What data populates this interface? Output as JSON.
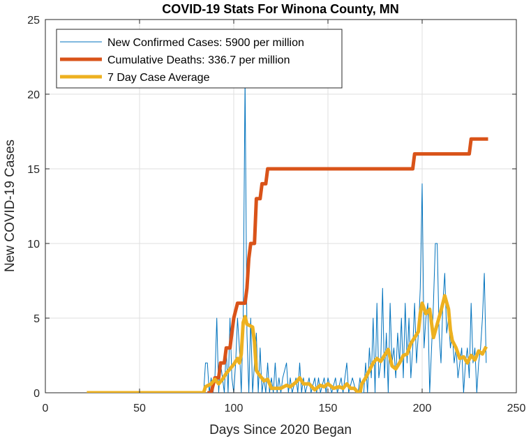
{
  "chart_data": {
    "type": "line",
    "title": "COVID-19 Stats For Winona County, MN",
    "xlabel": "Days Since 2020 Began",
    "ylabel": "New COVID-19 Cases",
    "xlim": [
      0,
      250
    ],
    "ylim": [
      0,
      25
    ],
    "xticks": [
      0,
      50,
      100,
      150,
      200,
      250
    ],
    "yticks": [
      0,
      5,
      10,
      15,
      20,
      25
    ],
    "grid": true,
    "legend_position": "top-left",
    "series": [
      {
        "name": "New Confirmed Cases: 5900 per million",
        "color": "#0072BD",
        "points": [
          [
            22,
            0
          ],
          [
            30,
            0
          ],
          [
            40,
            0
          ],
          [
            50,
            0
          ],
          [
            60,
            0
          ],
          [
            70,
            0
          ],
          [
            80,
            0
          ],
          [
            84,
            0
          ],
          [
            85,
            2
          ],
          [
            86,
            2
          ],
          [
            87,
            0
          ],
          [
            88,
            1
          ],
          [
            89,
            0
          ],
          [
            90,
            1
          ],
          [
            91,
            5
          ],
          [
            92,
            0
          ],
          [
            93,
            2
          ],
          [
            94,
            1
          ],
          [
            95,
            0
          ],
          [
            96,
            3
          ],
          [
            97,
            0
          ],
          [
            98,
            5
          ],
          [
            99,
            1
          ],
          [
            100,
            0
          ],
          [
            101,
            2
          ],
          [
            102,
            5
          ],
          [
            103,
            3
          ],
          [
            104,
            0
          ],
          [
            105,
            5
          ],
          [
            106,
            21
          ],
          [
            107,
            4
          ],
          [
            108,
            0
          ],
          [
            109,
            5
          ],
          [
            110,
            0
          ],
          [
            111,
            2
          ],
          [
            112,
            4
          ],
          [
            113,
            0
          ],
          [
            114,
            3
          ],
          [
            115,
            0
          ],
          [
            116,
            1
          ],
          [
            117,
            0
          ],
          [
            118,
            2
          ],
          [
            119,
            0
          ],
          [
            120,
            1
          ],
          [
            121,
            0
          ],
          [
            122,
            2
          ],
          [
            123,
            0
          ],
          [
            124,
            1
          ],
          [
            125,
            0
          ],
          [
            126,
            1
          ],
          [
            128,
            2
          ],
          [
            129,
            0
          ],
          [
            130,
            1
          ],
          [
            131,
            0
          ],
          [
            133,
            1
          ],
          [
            134,
            0
          ],
          [
            135,
            2
          ],
          [
            136,
            0
          ],
          [
            137,
            1
          ],
          [
            138,
            0
          ],
          [
            140,
            1
          ],
          [
            141,
            0
          ],
          [
            143,
            1
          ],
          [
            144,
            0
          ],
          [
            145,
            1
          ],
          [
            146,
            0
          ],
          [
            148,
            1
          ],
          [
            149,
            0
          ],
          [
            150,
            1
          ],
          [
            152,
            0
          ],
          [
            154,
            1
          ],
          [
            155,
            0
          ],
          [
            157,
            1
          ],
          [
            158,
            0
          ],
          [
            160,
            2
          ],
          [
            161,
            0
          ],
          [
            163,
            1
          ],
          [
            165,
            0
          ],
          [
            166,
            0
          ],
          [
            167,
            1
          ],
          [
            168,
            0
          ],
          [
            169,
            0
          ],
          [
            170,
            2
          ],
          [
            171,
            0
          ],
          [
            172,
            3
          ],
          [
            173,
            1
          ],
          [
            174,
            5
          ],
          [
            175,
            0
          ],
          [
            176,
            6
          ],
          [
            177,
            1
          ],
          [
            178,
            2
          ],
          [
            179,
            7
          ],
          [
            180,
            1
          ],
          [
            181,
            4
          ],
          [
            182,
            0
          ],
          [
            183,
            6
          ],
          [
            184,
            2
          ],
          [
            185,
            3
          ],
          [
            186,
            1
          ],
          [
            187,
            4
          ],
          [
            188,
            2
          ],
          [
            189,
            5
          ],
          [
            190,
            1
          ],
          [
            191,
            6
          ],
          [
            192,
            2
          ],
          [
            193,
            5
          ],
          [
            194,
            1
          ],
          [
            195,
            3
          ],
          [
            196,
            6
          ],
          [
            197,
            2
          ],
          [
            198,
            4
          ],
          [
            199,
            7
          ],
          [
            200,
            14
          ],
          [
            201,
            3
          ],
          [
            202,
            5
          ],
          [
            203,
            6
          ],
          [
            204,
            0
          ],
          [
            205,
            3
          ],
          [
            206,
            6
          ],
          [
            207,
            10
          ],
          [
            208,
            10
          ],
          [
            209,
            4
          ],
          [
            210,
            2
          ],
          [
            211,
            6
          ],
          [
            212,
            8
          ],
          [
            213,
            4
          ],
          [
            214,
            5
          ],
          [
            215,
            3
          ],
          [
            216,
            4
          ],
          [
            217,
            2
          ],
          [
            218,
            3
          ],
          [
            219,
            1
          ],
          [
            220,
            2
          ],
          [
            221,
            3
          ],
          [
            222,
            0
          ],
          [
            223,
            2
          ],
          [
            224,
            3
          ],
          [
            225,
            1
          ],
          [
            226,
            6
          ],
          [
            227,
            2
          ],
          [
            228,
            3
          ],
          [
            229,
            0
          ],
          [
            230,
            2
          ],
          [
            231,
            3
          ],
          [
            232,
            5
          ],
          [
            233,
            8
          ],
          [
            234,
            2
          ]
        ]
      },
      {
        "name": "Cumulative Deaths: 336.7 per million",
        "color": "#D95319",
        "points": [
          [
            86,
            0
          ],
          [
            88,
            0
          ],
          [
            89,
            0.5
          ],
          [
            90,
            1
          ],
          [
            92,
            1
          ],
          [
            93,
            2
          ],
          [
            95,
            2
          ],
          [
            96,
            3
          ],
          [
            98,
            3
          ],
          [
            99,
            4
          ],
          [
            100,
            5
          ],
          [
            102,
            6
          ],
          [
            106,
            6
          ],
          [
            107,
            7
          ],
          [
            108,
            9
          ],
          [
            109,
            10
          ],
          [
            111,
            10
          ],
          [
            112,
            13
          ],
          [
            114,
            13
          ],
          [
            115,
            14
          ],
          [
            117,
            14
          ],
          [
            118,
            15
          ],
          [
            120,
            15
          ],
          [
            150,
            15
          ],
          [
            195,
            15
          ],
          [
            196,
            16
          ],
          [
            225,
            16
          ],
          [
            226,
            17
          ],
          [
            235,
            17
          ]
        ]
      },
      {
        "name": "7 Day Case Average",
        "color": "#EDB120",
        "points": [
          [
            22,
            0
          ],
          [
            40,
            0
          ],
          [
            60,
            0
          ],
          [
            80,
            0
          ],
          [
            84,
            0
          ],
          [
            85,
            0.4
          ],
          [
            88,
            0.6
          ],
          [
            90,
            0.9
          ],
          [
            92,
            0.6
          ],
          [
            94,
            0.9
          ],
          [
            96,
            1.3
          ],
          [
            98,
            1.6
          ],
          [
            100,
            1.9
          ],
          [
            102,
            2.3
          ],
          [
            103,
            2.0
          ],
          [
            104,
            2.6
          ],
          [
            105,
            4.7
          ],
          [
            106,
            5.1
          ],
          [
            107,
            4.6
          ],
          [
            110,
            4.4
          ],
          [
            111,
            3.4
          ],
          [
            112,
            1.5
          ],
          [
            113,
            1.3
          ],
          [
            116,
            0.8
          ],
          [
            118,
            0.9
          ],
          [
            120,
            0.3
          ],
          [
            125,
            0.3
          ],
          [
            128,
            0.5
          ],
          [
            130,
            0.4
          ],
          [
            133,
            0.7
          ],
          [
            135,
            1.0
          ],
          [
            137,
            0.6
          ],
          [
            140,
            0.6
          ],
          [
            143,
            0.2
          ],
          [
            146,
            0.5
          ],
          [
            148,
            0.4
          ],
          [
            150,
            0.6
          ],
          [
            153,
            0.3
          ],
          [
            156,
            0.4
          ],
          [
            158,
            0.3
          ],
          [
            160,
            0.6
          ],
          [
            162,
            0.3
          ],
          [
            164,
            0.3
          ],
          [
            166,
            0
          ],
          [
            167,
            0
          ],
          [
            168,
            0.6
          ],
          [
            170,
            1.0
          ],
          [
            172,
            1.5
          ],
          [
            174,
            2.0
          ],
          [
            176,
            2.3
          ],
          [
            178,
            2.1
          ],
          [
            180,
            2.5
          ],
          [
            182,
            2.9
          ],
          [
            184,
            1.8
          ],
          [
            186,
            1.6
          ],
          [
            188,
            2.0
          ],
          [
            190,
            2.5
          ],
          [
            192,
            2.6
          ],
          [
            194,
            3.3
          ],
          [
            196,
            3.7
          ],
          [
            198,
            4.1
          ],
          [
            199,
            5.3
          ],
          [
            200,
            6.0
          ],
          [
            202,
            5.3
          ],
          [
            204,
            5.6
          ],
          [
            206,
            3.7
          ],
          [
            208,
            4.6
          ],
          [
            210,
            5.5
          ],
          [
            212,
            6.5
          ],
          [
            214,
            5.6
          ],
          [
            215,
            4.2
          ],
          [
            216,
            3.5
          ],
          [
            218,
            3.0
          ],
          [
            220,
            2.3
          ],
          [
            222,
            2.4
          ],
          [
            224,
            2.0
          ],
          [
            226,
            2.5
          ],
          [
            228,
            2.2
          ],
          [
            230,
            2.8
          ],
          [
            232,
            2.6
          ],
          [
            234,
            3.1
          ]
        ]
      }
    ]
  }
}
